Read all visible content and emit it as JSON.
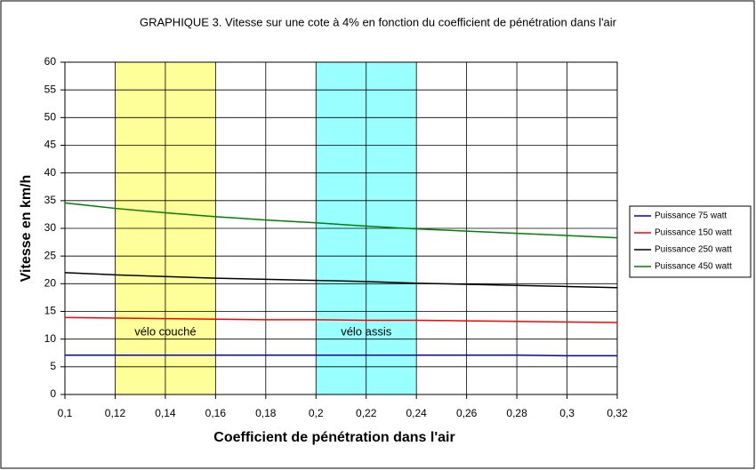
{
  "chart_data": {
    "type": "line",
    "title": "GRAPHIQUE 3. Vitesse sur une cote à 4% en fonction du coefficient de pénétration dans l'air",
    "x_label": "Coefficient de pénétration dans l'air",
    "y_label": "Vitesse en km/h",
    "x": [
      0.1,
      0.12,
      0.14,
      0.16,
      0.18,
      0.2,
      0.22,
      0.24,
      0.26,
      0.28,
      0.3,
      0.32
    ],
    "series": [
      {
        "name": "Puissance 75 watt",
        "color": "#0000cc",
        "values": [
          7.1,
          7.1,
          7.1,
          7.1,
          7.1,
          7.1,
          7.1,
          7.1,
          7.1,
          7.1,
          7.0,
          7.0
        ]
      },
      {
        "name": "Puissance 150 watt",
        "color": "#ff0000",
        "values": [
          13.9,
          13.8,
          13.7,
          13.6,
          13.5,
          13.5,
          13.4,
          13.4,
          13.3,
          13.2,
          13.1,
          13.0
        ]
      },
      {
        "name": "Puissance 250 watt",
        "color": "#000000",
        "values": [
          22.0,
          21.6,
          21.3,
          21.0,
          20.8,
          20.6,
          20.4,
          20.1,
          19.9,
          19.7,
          19.5,
          19.3
        ]
      },
      {
        "name": "Puissance 450 watt",
        "color": "#008000",
        "values": [
          34.6,
          33.6,
          32.8,
          32.1,
          31.5,
          31.0,
          30.4,
          29.9,
          29.5,
          29.1,
          28.7,
          28.3
        ]
      }
    ],
    "bands": [
      {
        "x": [
          0.12,
          0.16
        ],
        "label": "vélo couché",
        "color": "#ffff99"
      },
      {
        "x": [
          0.2,
          0.24
        ],
        "label": "vélo assis",
        "color": "#99ffff"
      }
    ],
    "xlim": [
      0.1,
      0.32
    ],
    "xticks": [
      {
        "value": 0.1,
        "label": "0,1"
      },
      {
        "value": 0.12,
        "label": "0,12"
      },
      {
        "value": 0.14,
        "label": "0,14"
      },
      {
        "value": 0.16,
        "label": "0,16"
      },
      {
        "value": 0.18,
        "label": "0,18"
      },
      {
        "value": 0.2,
        "label": "0,2"
      },
      {
        "value": 0.22,
        "label": "0,22"
      },
      {
        "value": 0.24,
        "label": "0,24"
      },
      {
        "value": 0.26,
        "label": "0,26"
      },
      {
        "value": 0.28,
        "label": "0,28"
      },
      {
        "value": 0.3,
        "label": "0,3"
      },
      {
        "value": 0.32,
        "label": "0,32"
      }
    ],
    "ylim": [
      0,
      60
    ],
    "yticks": [
      0,
      5,
      10,
      15,
      20,
      25,
      30,
      35,
      40,
      45,
      50,
      55,
      60
    ],
    "grid": true,
    "legend": "right"
  }
}
